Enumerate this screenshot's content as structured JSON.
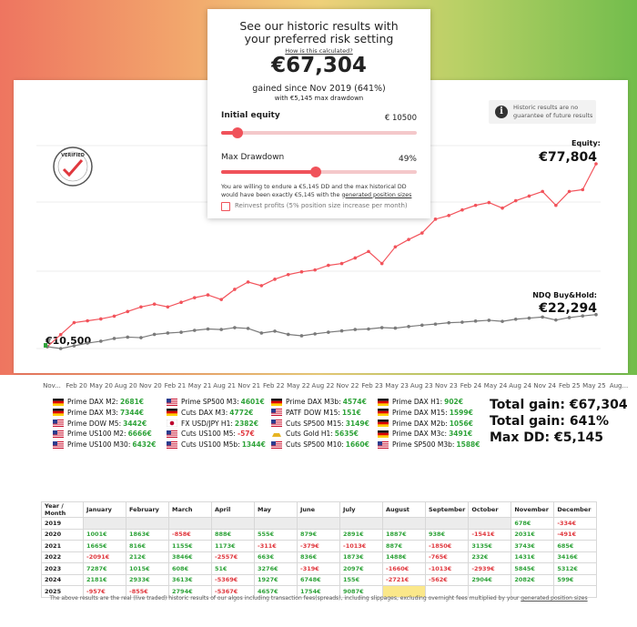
{
  "popup": {
    "title": "See our historic results with your preferred risk setting",
    "link": "How is this calculated?",
    "gain": "€67,304",
    "since": "gained since Nov 2019 (641%)",
    "drawdown_note": "with €5,145 max drawdown",
    "equity_label": "Initial equity",
    "equity_value": "€ 10500",
    "dd_label": "Max Drawdown",
    "dd_value": "49%",
    "explanation": "You are willing to endure a €5,145 DD and the max historical DD would have been exactly €5,145 with the",
    "explanation_link": "generated position sizes",
    "reinvest": "Reinvest profits (5% position size increase per month)"
  },
  "notice": "Historic results are no guarantee of future results",
  "badge": "VERIFIED",
  "chart_data": {
    "type": "line",
    "x_labels": [
      "Nov...",
      "Feb 20",
      "May 20",
      "Aug 20",
      "Nov 20",
      "Feb 21",
      "May 21",
      "Aug 21",
      "Nov 21",
      "Feb 22",
      "May 22",
      "Aug 22",
      "Nov 22",
      "Feb 23",
      "May 23",
      "Aug 23",
      "Nov 23",
      "Feb 24",
      "May 24",
      "Aug 24",
      "Nov 24",
      "Feb 25",
      "May 25",
      "Aug..."
    ],
    "start_label": "€10,500",
    "series": [
      {
        "name": "Equity:",
        "value_label": "€77,804",
        "color": "#f2535b",
        "values": [
          10500,
          14920,
          19340,
          20020,
          20700,
          21720,
          23420,
          25120,
          26140,
          25120,
          26820,
          28520,
          29540,
          27840,
          31580,
          34300,
          32940,
          35320,
          37020,
          38040,
          38720,
          40420,
          41100,
          43140,
          45520,
          41100,
          47220,
          49940,
          52320,
          57420,
          58780,
          60820,
          62520,
          63540,
          61500,
          64220,
          65920,
          67620,
          62520,
          67620,
          68300,
          77804
        ]
      },
      {
        "name": "NDQ Buy&Hold:",
        "value_label": "€22,294",
        "color": "#7a7a7a",
        "values": [
          10500,
          9800,
          10800,
          11800,
          12500,
          13500,
          14000,
          13800,
          15000,
          15500,
          15800,
          16500,
          17000,
          16800,
          17500,
          17200,
          15500,
          16200,
          15000,
          14500,
          15200,
          15800,
          16300,
          16800,
          17000,
          17500,
          17300,
          17900,
          18400,
          18800,
          19300,
          19500,
          19900,
          20200,
          19800,
          20600,
          21000,
          21400,
          20300,
          21200,
          21800,
          22294
        ]
      }
    ]
  },
  "strategies": [
    {
      "name": "Prime DAX M2:",
      "result": "2681€",
      "flag": "de"
    },
    {
      "name": "Prime DAX M3:",
      "result": "7344€",
      "flag": "de"
    },
    {
      "name": "Prime DOW M5:",
      "result": "3442€",
      "flag": "us"
    },
    {
      "name": "Prime US100 M2:",
      "result": "6666€",
      "flag": "us"
    },
    {
      "name": "Prime US100 M30:",
      "result": "6432€",
      "flag": "us"
    },
    {
      "name": "Prime SP500 M3:",
      "result": "4601€",
      "flag": "us"
    },
    {
      "name": "Cuts DAX M3:",
      "result": "4772€",
      "flag": "de"
    },
    {
      "name": "FX USD/JPY H1:",
      "result": "2382€",
      "flag": "jp"
    },
    {
      "name": "Cuts US100 M5:",
      "result": "-57€",
      "flag": "us"
    },
    {
      "name": "Cuts US100 M5b:",
      "result": "1344€",
      "flag": "us"
    },
    {
      "name": "Prime DAX M3b:",
      "result": "4574€",
      "flag": "de"
    },
    {
      "name": "PATF DOW M15:",
      "result": "151€",
      "flag": "us"
    },
    {
      "name": "Cuts SP500 M15:",
      "result": "3149€",
      "flag": "us"
    },
    {
      "name": "Cuts Gold H1:",
      "result": "5635€",
      "flag": "gold"
    },
    {
      "name": "Cuts SP500 M10:",
      "result": "1660€",
      "flag": "us"
    },
    {
      "name": "Prime DAX H1:",
      "result": "902€",
      "flag": "de"
    },
    {
      "name": "Prime DAX M15:",
      "result": "1599€",
      "flag": "de"
    },
    {
      "name": "Prime DAX M2b:",
      "result": "1056€",
      "flag": "de"
    },
    {
      "name": "Prime DAX M3c:",
      "result": "3491€",
      "flag": "de"
    },
    {
      "name": "Prime SP500 M3b:",
      "result": "1588€",
      "flag": "us"
    }
  ],
  "totals": [
    "Total gain: €67,304",
    "Total gain: 641%",
    "Max DD: €5,145"
  ],
  "table": {
    "header": [
      "Year / Month",
      "January",
      "February",
      "March",
      "April",
      "May",
      "June",
      "July",
      "August",
      "September",
      "October",
      "November",
      "December"
    ],
    "rows": [
      [
        "2019",
        null,
        null,
        null,
        null,
        null,
        null,
        null,
        null,
        null,
        null,
        "678€",
        "-334€"
      ],
      [
        "2020",
        "1001€",
        "1863€",
        "-858€",
        "888€",
        "555€",
        "879€",
        "2891€",
        "1887€",
        "938€",
        "-1541€",
        "2031€",
        "-491€"
      ],
      [
        "2021",
        "1665€",
        "816€",
        "1155€",
        "1173€",
        "-311€",
        "-379€",
        "-1013€",
        "887€",
        "-1850€",
        "3135€",
        "3743€",
        "685€"
      ],
      [
        "2022",
        "-2091€",
        "212€",
        "3846€",
        "-2557€",
        "663€",
        "836€",
        "1873€",
        "1488€",
        "-765€",
        "232€",
        "1431€",
        "3416€"
      ],
      [
        "2023",
        "7287€",
        "1015€",
        "608€",
        "51€",
        "3276€",
        "-319€",
        "2097€",
        "-1660€",
        "-1013€",
        "-2939€",
        "5845€",
        "5312€"
      ],
      [
        "2024",
        "2181€",
        "2933€",
        "3613€",
        "-5369€",
        "1927€",
        "6748€",
        "155€",
        "-2721€",
        "-562€",
        "2904€",
        "2082€",
        "599€"
      ],
      [
        "2025",
        "-957€",
        "-855€",
        "2794€",
        "-5367€",
        "4657€",
        "1754€",
        "9087€",
        null,
        null,
        null,
        null,
        null
      ]
    ]
  },
  "footer": {
    "text": "The above results are the real (live traded) historic results of our algos including transaction fees(spreads), including slippages, excluding overnight fees multiplied by your",
    "link": "generated position sizes"
  }
}
